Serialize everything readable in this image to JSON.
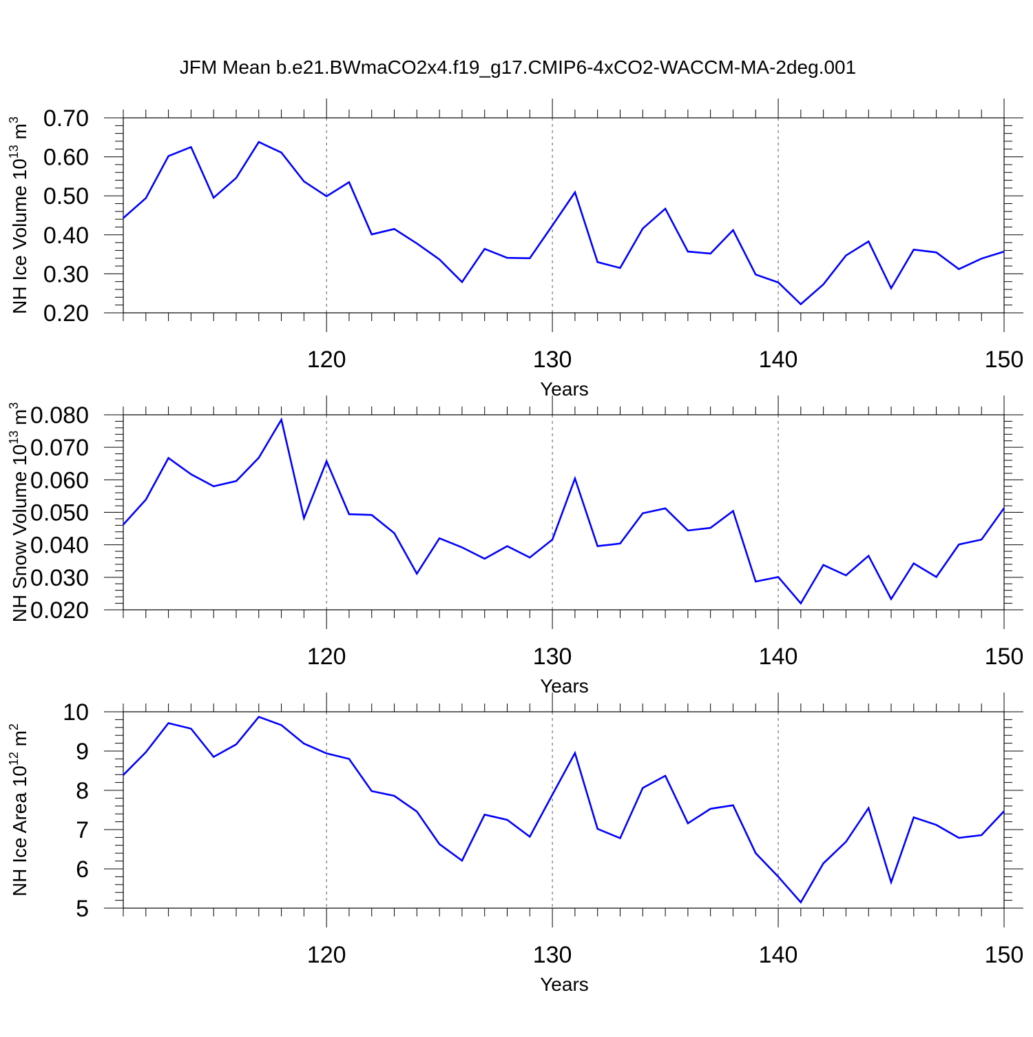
{
  "title": "JFM Mean b.e21.BWmaCO2x4.f19_g17.CMIP6-4xCO2-WACCM-MA-2deg.001",
  "colors": {
    "line": "#0000ff",
    "axis": "#000000",
    "gridline": "#555555"
  },
  "chart_data": [
    {
      "type": "line",
      "xlabel": "Years",
      "ylabel": {
        "base": "NH Ice Volume 10",
        "exp": "13",
        "unit": " m",
        "unit_exp": "3"
      },
      "xlim": [
        111,
        150
      ],
      "ylim": [
        0.2,
        0.7
      ],
      "xticks": [
        120,
        130,
        140,
        150
      ],
      "yticks": [
        0.2,
        0.3,
        0.4,
        0.5,
        0.6,
        0.7
      ],
      "ytick_labels": [
        "0.20",
        "0.30",
        "0.40",
        "0.50",
        "0.60",
        "0.70"
      ],
      "grid": "vertical dashed at major x ticks",
      "series": [
        {
          "x": [
            111,
            112,
            113,
            114,
            115,
            116,
            117,
            118,
            119,
            120,
            121,
            122,
            123,
            124,
            125,
            126,
            127,
            128,
            129,
            130,
            131,
            132,
            133,
            134,
            135,
            136,
            137,
            138,
            139,
            140,
            141,
            142,
            143,
            144,
            145,
            146,
            147,
            148,
            149,
            150
          ],
          "values": [
            0.443,
            0.494,
            0.602,
            0.625,
            0.495,
            0.546,
            0.638,
            0.611,
            0.537,
            0.499,
            0.535,
            0.401,
            0.415,
            0.378,
            0.337,
            0.279,
            0.364,
            0.341,
            0.34,
            0.424,
            0.509,
            0.33,
            0.315,
            0.416,
            0.467,
            0.357,
            0.352,
            0.412,
            0.298,
            0.278,
            0.222,
            0.273,
            0.347,
            0.383,
            0.263,
            0.362,
            0.355,
            0.312,
            0.339,
            0.357
          ]
        }
      ]
    },
    {
      "type": "line",
      "xlabel": "Years",
      "ylabel": {
        "base": "NH Snow Volume 10",
        "exp": "13",
        "unit": " m",
        "unit_exp": "3"
      },
      "xlim": [
        111,
        150
      ],
      "ylim": [
        0.02,
        0.08
      ],
      "xticks": [
        120,
        130,
        140,
        150
      ],
      "yticks": [
        0.02,
        0.03,
        0.04,
        0.05,
        0.06,
        0.07,
        0.08
      ],
      "ytick_labels": [
        "0.020",
        "0.030",
        "0.040",
        "0.050",
        "0.060",
        "0.070",
        "0.080"
      ],
      "grid": "vertical dashed at major x ticks",
      "series": [
        {
          "x": [
            111,
            112,
            113,
            114,
            115,
            116,
            117,
            118,
            119,
            120,
            121,
            122,
            123,
            124,
            125,
            126,
            127,
            128,
            129,
            130,
            131,
            132,
            133,
            134,
            135,
            136,
            137,
            138,
            139,
            140,
            141,
            142,
            143,
            144,
            145,
            146,
            147,
            148,
            149,
            150
          ],
          "values": [
            0.0462,
            0.0539,
            0.0667,
            0.0617,
            0.058,
            0.0596,
            0.0668,
            0.0785,
            0.0482,
            0.0657,
            0.0494,
            0.0492,
            0.0436,
            0.0311,
            0.042,
            0.0392,
            0.0357,
            0.0396,
            0.0361,
            0.0416,
            0.0604,
            0.0396,
            0.0404,
            0.0497,
            0.0512,
            0.0444,
            0.0452,
            0.0504,
            0.0287,
            0.0301,
            0.022,
            0.0338,
            0.0306,
            0.0366,
            0.0233,
            0.0343,
            0.0301,
            0.0401,
            0.0416,
            0.0513
          ]
        }
      ]
    },
    {
      "type": "line",
      "xlabel": "Years",
      "ylabel": {
        "base": "NH Ice Area 10",
        "exp": "12",
        "unit": " m",
        "unit_exp": "2"
      },
      "xlim": [
        111,
        150
      ],
      "ylim": [
        5,
        10
      ],
      "xticks": [
        120,
        130,
        140,
        150
      ],
      "yticks": [
        5,
        6,
        7,
        8,
        9,
        10
      ],
      "ytick_labels": [
        "5",
        "6",
        "7",
        "8",
        "9",
        "10"
      ],
      "grid": "vertical dashed at major x ticks",
      "series": [
        {
          "x": [
            111,
            112,
            113,
            114,
            115,
            116,
            117,
            118,
            119,
            120,
            121,
            122,
            123,
            124,
            125,
            126,
            127,
            128,
            129,
            130,
            131,
            132,
            133,
            134,
            135,
            136,
            137,
            138,
            139,
            140,
            141,
            142,
            143,
            144,
            145,
            146,
            147,
            148,
            149,
            150
          ],
          "values": [
            8.39,
            8.97,
            9.71,
            9.57,
            8.85,
            9.17,
            9.87,
            9.66,
            9.19,
            8.94,
            8.8,
            7.98,
            7.86,
            7.46,
            6.63,
            6.21,
            7.38,
            7.25,
            6.82,
            7.89,
            8.95,
            7.02,
            6.78,
            8.06,
            8.37,
            7.16,
            7.53,
            7.62,
            6.4,
            5.8,
            5.15,
            6.14,
            6.69,
            7.55,
            5.66,
            7.31,
            7.12,
            6.79,
            6.86,
            7.47
          ]
        }
      ]
    }
  ]
}
